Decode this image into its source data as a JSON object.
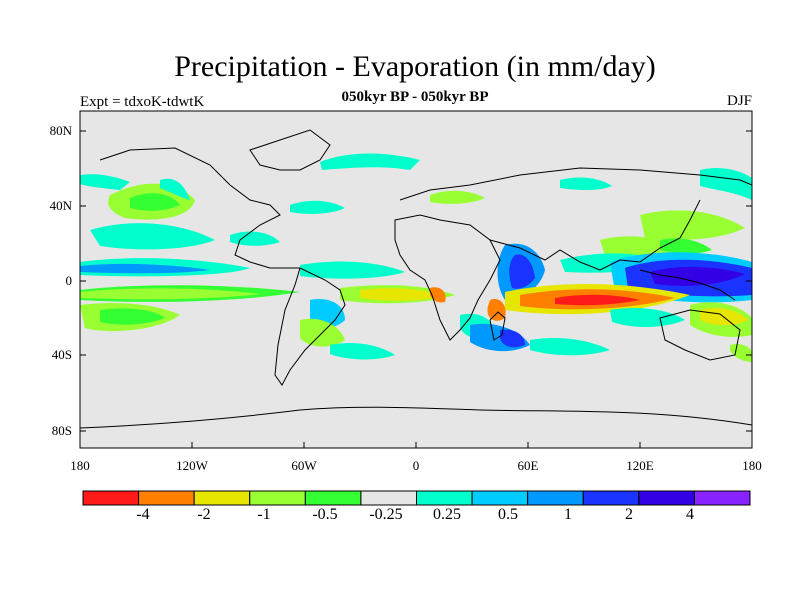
{
  "header": {
    "title": "Precipitation - Evaporation (in mm/day)",
    "subtitle": "050kyr BP - 050kyr BP",
    "experiment": "Expt = tdxoK-tdwtK",
    "season": "DJF"
  },
  "axes": {
    "lat_labels": [
      "80N",
      "40N",
      "0",
      "40S",
      "80S"
    ],
    "lon_labels": [
      "180",
      "120W",
      "60W",
      "0",
      "60E",
      "120E",
      "180"
    ]
  },
  "colorbar": {
    "colors": [
      "#ff1a1a",
      "#ff8000",
      "#e6e600",
      "#99ff33",
      "#33ff33",
      "#e6e6e6",
      "#00ffcc",
      "#00ccff",
      "#0099ff",
      "#1a33ff",
      "#3300e6",
      "#8822ff"
    ],
    "labels": [
      "-4",
      "-2",
      "-1",
      "-0.5",
      "-0.25",
      "0.25",
      "0.5",
      "1",
      "2",
      "4"
    ]
  },
  "map": {
    "background": "#e6e6e6"
  }
}
